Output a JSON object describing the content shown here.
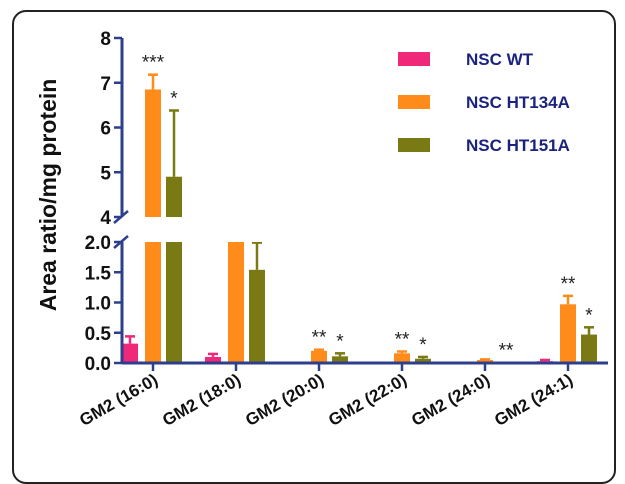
{
  "chart_data": {
    "type": "bar",
    "title": "",
    "xlabel": "",
    "ylabel": "Area ratio/mg protein",
    "axis_break": {
      "lower_max": 2.0,
      "upper_min": 4
    },
    "lower_ticks": [
      "0.0",
      "0.5",
      "1.0",
      "1.5",
      "2.0"
    ],
    "upper_ticks": [
      "4",
      "5",
      "6",
      "7",
      "8"
    ],
    "categories": [
      "GM2 (16:0)",
      "GM2 (18:0)",
      "GM2 (20:0)",
      "GM2 (22:0)",
      "GM2 (24:0)",
      "GM2 (24:1)"
    ],
    "legend_position": "top-right",
    "series": [
      {
        "name": "NSC WT",
        "color": "#f0287a",
        "values": [
          0.32,
          0.1,
          0.01,
          0.01,
          0.01,
          0.03
        ],
        "errors": [
          0.12,
          0.05,
          0.0,
          0.0,
          0.0,
          0.02
        ],
        "stars": [
          "",
          "",
          "",
          "",
          "",
          ""
        ]
      },
      {
        "name": "NSC HT134A",
        "color": "#ff8c1a",
        "values": [
          6.85,
          2.0,
          0.2,
          0.16,
          0.05,
          0.97
        ],
        "errors": [
          0.33,
          0.0,
          0.02,
          0.03,
          0.01,
          0.14
        ],
        "stars": [
          "***",
          "***",
          "**",
          "**",
          "",
          "**"
        ]
      },
      {
        "name": "NSC HT151A",
        "color": "#7a7a14",
        "values": [
          4.9,
          1.54,
          0.11,
          0.07,
          0.01,
          0.47
        ],
        "errors": [
          1.48,
          0.45,
          0.05,
          0.03,
          0.0,
          0.12
        ],
        "stars": [
          "*",
          "*",
          "*",
          "*",
          "**",
          "*"
        ]
      }
    ]
  }
}
